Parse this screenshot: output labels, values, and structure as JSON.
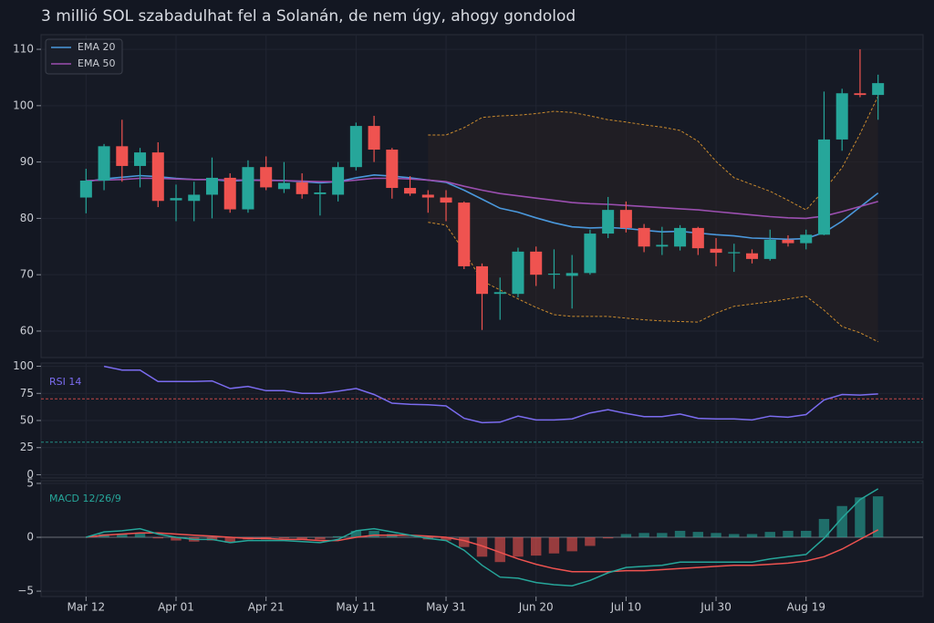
{
  "chart_data": [
    {
      "type": "candlestick",
      "title": "3 millió SOL szabadulhat fel a Solanán, de nem úgy, ahogy gondolod",
      "x": [
        0,
        4,
        8,
        12,
        16,
        20,
        24,
        28,
        32,
        36,
        40,
        44,
        48,
        52,
        56,
        60,
        64,
        68,
        72,
        76,
        80,
        84,
        88,
        92,
        96,
        100,
        104,
        108,
        112,
        116,
        120,
        124,
        128,
        132,
        136,
        140,
        144,
        148,
        152,
        156,
        160,
        164,
        168,
        172,
        176
      ],
      "open": [
        83.7,
        86.7,
        92.8,
        89.3,
        91.7,
        83.2,
        83.1,
        84.2,
        87.2,
        81.6,
        89.1,
        85.2,
        86.4,
        84.3,
        84.2,
        89.1,
        96.4,
        92.2,
        85.4,
        84.2,
        83.7,
        82.8,
        71.5,
        66.6,
        66.6,
        74.1,
        70.0,
        69.8,
        70.3,
        77.3,
        81.5,
        78.3,
        75.0,
        75.0,
        78.3,
        74.6,
        73.9,
        73.8,
        72.8,
        76.2,
        75.6,
        77.1,
        94.0,
        102.2,
        101.9
      ],
      "high": [
        88.8,
        93.2,
        97.5,
        92.5,
        93.5,
        86.0,
        86.5,
        90.8,
        88.0,
        90.3,
        91.0,
        90.0,
        88.0,
        86.0,
        90.0,
        97.0,
        98.2,
        92.5,
        87.5,
        85.0,
        85.0,
        83.0,
        72.0,
        69.5,
        74.8,
        75.0,
        74.5,
        73.5,
        78.0,
        83.8,
        83.0,
        79.0,
        78.5,
        78.8,
        78.5,
        76.5,
        75.5,
        74.5,
        78.0,
        77.0,
        78.0,
        102.5,
        103.0,
        110.0,
        105.5
      ],
      "low": [
        80.9,
        85.0,
        86.5,
        85.5,
        82.0,
        79.5,
        79.5,
        80.0,
        81.0,
        81.0,
        85.0,
        84.5,
        83.5,
        80.5,
        83.0,
        88.5,
        90.0,
        83.5,
        84.0,
        81.0,
        79.5,
        71.0,
        60.2,
        62.0,
        66.0,
        68.0,
        67.5,
        64.0,
        70.0,
        76.5,
        77.5,
        74.0,
        73.5,
        74.3,
        73.5,
        71.5,
        70.5,
        72.0,
        72.5,
        75.0,
        74.5,
        77.0,
        92.0,
        101.5,
        97.5
      ],
      "close": [
        86.7,
        92.8,
        89.3,
        91.7,
        83.1,
        83.6,
        84.2,
        87.2,
        81.6,
        89.1,
        85.5,
        86.3,
        84.3,
        84.6,
        89.1,
        96.4,
        92.2,
        85.4,
        84.4,
        83.7,
        82.8,
        71.5,
        66.6,
        66.9,
        74.1,
        70.0,
        70.2,
        70.3,
        77.3,
        81.5,
        78.3,
        75.0,
        75.3,
        78.3,
        74.7,
        73.9,
        74.0,
        72.8,
        76.2,
        75.6,
        77.1,
        94.0,
        102.2,
        101.9,
        104.0
      ],
      "up_color": "#26a69a",
      "down_color": "#ef5350",
      "series": [
        {
          "name": "EMA 20",
          "color": "#4a98dc",
          "values": [
            86.5,
            87,
            87.3,
            87.6,
            87.4,
            87.1,
            86.9,
            86.9,
            86.6,
            86.8,
            86.8,
            86.7,
            86.5,
            86.3,
            86.5,
            87.2,
            87.7,
            87.5,
            87.2,
            86.8,
            86.4,
            85.0,
            83.4,
            81.8,
            81.1,
            80.1,
            79.2,
            78.5,
            78.3,
            78.4,
            78.2,
            77.9,
            77.6,
            77.7,
            77.4,
            77.1,
            76.9,
            76.5,
            76.4,
            76.3,
            76.4,
            77.5,
            79.5,
            82.0,
            84.5
          ]
        },
        {
          "name": "EMA 50",
          "color": "#9b4fb0",
          "values": [
            86.7,
            86.8,
            86.9,
            87.1,
            87.1,
            87.0,
            86.9,
            86.9,
            86.8,
            86.8,
            86.7,
            86.7,
            86.6,
            86.5,
            86.5,
            86.8,
            87.1,
            87.1,
            87.0,
            86.8,
            86.5,
            85.7,
            85.0,
            84.4,
            84.0,
            83.6,
            83.2,
            82.8,
            82.6,
            82.5,
            82.3,
            82.1,
            81.9,
            81.7,
            81.5,
            81.2,
            80.9,
            80.6,
            80.3,
            80.1,
            80.0,
            80.4,
            81.2,
            82.1,
            83.0
          ]
        }
      ],
      "bands": {
        "color": "#c98a2e",
        "upper": [
          null,
          null,
          null,
          null,
          null,
          null,
          null,
          null,
          null,
          null,
          null,
          null,
          null,
          null,
          null,
          null,
          null,
          null,
          null,
          94.8,
          94.8,
          96.1,
          97.9,
          98.2,
          98.3,
          98.6,
          99.0,
          98.8,
          98.2,
          97.5,
          97.1,
          96.6,
          96.2,
          95.6,
          93.7,
          90.1,
          87.2,
          86.0,
          84.8,
          83.2,
          81.5,
          85.0,
          89.0,
          95.0,
          101.7
        ],
        "lower": [
          null,
          null,
          null,
          null,
          null,
          null,
          null,
          null,
          null,
          null,
          null,
          null,
          null,
          null,
          null,
          null,
          null,
          null,
          null,
          79.3,
          78.8,
          74.2,
          68.9,
          67.3,
          65.7,
          64.2,
          62.9,
          62.6,
          62.6,
          62.6,
          62.3,
          62.0,
          61.8,
          61.7,
          61.6,
          63.2,
          64.4,
          64.8,
          65.2,
          65.7,
          66.2,
          63.7,
          60.8,
          59.7,
          58.1
        ]
      },
      "ylim": [
        55.3,
        112.6
      ],
      "yticks": [
        60,
        70,
        80,
        90,
        100,
        110
      ],
      "grid": true,
      "legend": "upper left"
    },
    {
      "type": "line",
      "label": "RSI 14",
      "color": "#7b6cf0",
      "values": [
        null,
        100,
        96.5,
        96.5,
        86,
        86,
        86,
        86.5,
        79.5,
        81.5,
        77.5,
        77.5,
        75,
        75,
        77,
        79.5,
        74,
        66,
        65,
        64.5,
        63.5,
        52,
        48,
        48.5,
        54,
        50.5,
        50.5,
        51.5,
        57,
        60,
        56.5,
        53.5,
        53.5,
        56,
        52,
        51.5,
        51.5,
        50.5,
        54,
        53,
        55.5,
        69,
        74,
        73.5,
        74.5
      ],
      "levels": [
        {
          "value": 70,
          "color": "#ef5350"
        },
        {
          "value": 30,
          "color": "#26a69a"
        }
      ],
      "ylim": [
        -3,
        103
      ],
      "yticks": [
        0,
        25,
        50,
        75,
        100
      ],
      "grid": true
    },
    {
      "type": "macd",
      "label": "MACD 12/26/9",
      "macd": {
        "color": "#26a69a",
        "values": [
          0,
          0.5,
          0.6,
          0.8,
          0.3,
          0,
          -0.2,
          -0.2,
          -0.5,
          -0.3,
          -0.3,
          -0.3,
          -0.4,
          -0.5,
          -0.2,
          0.6,
          0.8,
          0.5,
          0.2,
          -0.1,
          -0.3,
          -1.2,
          -2.6,
          -3.7,
          -3.8,
          -4.2,
          -4.4,
          -4.5,
          -4.0,
          -3.3,
          -2.8,
          -2.7,
          -2.6,
          -2.3,
          -2.3,
          -2.3,
          -2.3,
          -2.3,
          -2.0,
          -1.8,
          -1.6,
          -0.1,
          1.8,
          3.5,
          4.5
        ]
      },
      "signal": {
        "color": "#ef5350",
        "values": [
          0,
          0.2,
          0.3,
          0.4,
          0.4,
          0.3,
          0.2,
          0.1,
          0,
          -0.1,
          -0.1,
          -0.2,
          -0.2,
          -0.3,
          -0.3,
          0,
          0.2,
          0.2,
          0.2,
          0.1,
          0,
          -0.3,
          -0.8,
          -1.4,
          -2.0,
          -2.5,
          -2.9,
          -3.2,
          -3.2,
          -3.2,
          -3.1,
          -3.1,
          -3.0,
          -2.9,
          -2.8,
          -2.7,
          -2.6,
          -2.6,
          -2.5,
          -2.4,
          -2.2,
          -1.8,
          -1.1,
          -0.2,
          0.7
        ]
      },
      "histogram": {
        "up_color": "#26a69a",
        "down_color": "#ef5350",
        "values": [
          0,
          0.3,
          0.3,
          0.4,
          -0.1,
          -0.3,
          -0.4,
          -0.3,
          -0.5,
          -0.2,
          -0.2,
          -0.1,
          -0.2,
          -0.2,
          0.1,
          0.6,
          0.6,
          0.3,
          0.0,
          -0.2,
          -0.3,
          -0.9,
          -1.8,
          -2.3,
          -1.8,
          -1.7,
          -1.5,
          -1.3,
          -0.8,
          -0.1,
          0.3,
          0.4,
          0.4,
          0.6,
          0.5,
          0.4,
          0.3,
          0.3,
          0.5,
          0.6,
          0.6,
          1.7,
          2.9,
          3.7,
          3.8
        ]
      },
      "ylim": [
        -5.5,
        5.25
      ],
      "yticks": [
        {
          "value": -5,
          "label": "−5"
        },
        0,
        5
      ],
      "grid": true,
      "xlim": [
        -10,
        186
      ],
      "xticks": [
        {
          "value": 0,
          "label": "Mar 12"
        },
        {
          "value": 20,
          "label": "Apr 01"
        },
        {
          "value": 40,
          "label": "Apr 21"
        },
        {
          "value": 60,
          "label": "May 11"
        },
        {
          "value": 80,
          "label": "May 31"
        },
        {
          "value": 100,
          "label": "Jun 20"
        },
        {
          "value": 120,
          "label": "Jul 10"
        },
        {
          "value": 140,
          "label": "Jul 30"
        },
        {
          "value": 160,
          "label": "Aug 19"
        }
      ]
    }
  ]
}
